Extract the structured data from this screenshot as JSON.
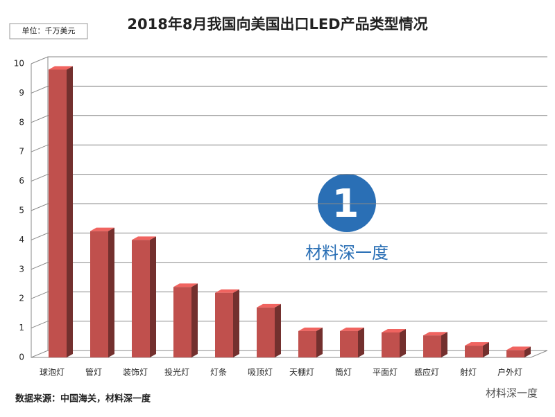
{
  "chart_data": {
    "type": "bar3d",
    "title": "2018年8月我国向美国出口LED产品类型情况",
    "unit_label": "单位：千万美元",
    "categories": [
      "球泡灯",
      "管灯",
      "装饰灯",
      "投光灯",
      "灯条",
      "吸顶灯",
      "天棚灯",
      "筒灯",
      "平面灯",
      "感应灯",
      "射灯",
      "户外灯"
    ],
    "values": [
      9.8,
      4.3,
      4.0,
      2.4,
      2.2,
      1.7,
      0.9,
      0.9,
      0.85,
      0.75,
      0.4,
      0.25
    ],
    "color": "#c0504d",
    "ylim": [
      0,
      10
    ],
    "yticks": [
      0,
      1,
      2,
      3,
      4,
      5,
      6,
      7,
      8,
      9,
      10
    ],
    "grid": true,
    "source": "数据来源：中国海关，材料深一度",
    "watermark": "材料深一度",
    "footer_brand": "材料深一度"
  }
}
